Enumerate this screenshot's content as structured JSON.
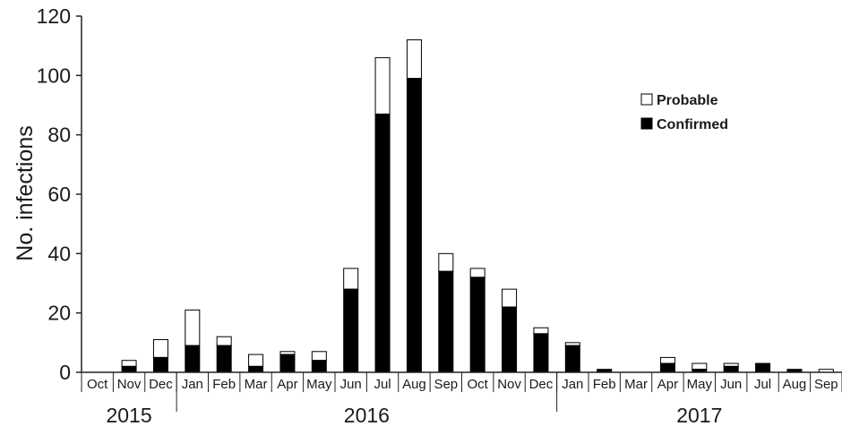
{
  "chart_data": {
    "type": "bar",
    "stacked": true,
    "title": "",
    "xlabel": "",
    "ylabel": "No. infections",
    "ylim": [
      0,
      120
    ],
    "yticks": [
      0,
      20,
      40,
      60,
      80,
      100,
      120
    ],
    "categories": [
      "Oct",
      "Nov",
      "Dec",
      "Jan",
      "Feb",
      "Mar",
      "Apr",
      "May",
      "Jun",
      "Jul",
      "Aug",
      "Sep",
      "Oct",
      "Nov",
      "Dec",
      "Jan",
      "Feb",
      "Mar",
      "Apr",
      "May",
      "Jun",
      "Jul",
      "Aug",
      "Sep"
    ],
    "year_groups": [
      {
        "label": "2015",
        "start": 0,
        "end": 2
      },
      {
        "label": "2016",
        "start": 3,
        "end": 14
      },
      {
        "label": "2017",
        "start": 15,
        "end": 23
      }
    ],
    "series": [
      {
        "name": "Confirmed",
        "color": "#000000",
        "values": [
          0,
          2,
          5,
          9,
          9,
          2,
          6,
          4,
          28,
          87,
          99,
          34,
          32,
          22,
          13,
          9,
          1,
          0,
          3,
          1,
          2,
          3,
          1,
          0
        ]
      },
      {
        "name": "Probable",
        "color": "#ffffff",
        "values": [
          0,
          2,
          6,
          12,
          3,
          4,
          1,
          3,
          7,
          19,
          13,
          6,
          3,
          6,
          2,
          1,
          0,
          0,
          2,
          2,
          1,
          0,
          0,
          1
        ]
      }
    ],
    "legend_position": "top-right",
    "grid": false
  }
}
